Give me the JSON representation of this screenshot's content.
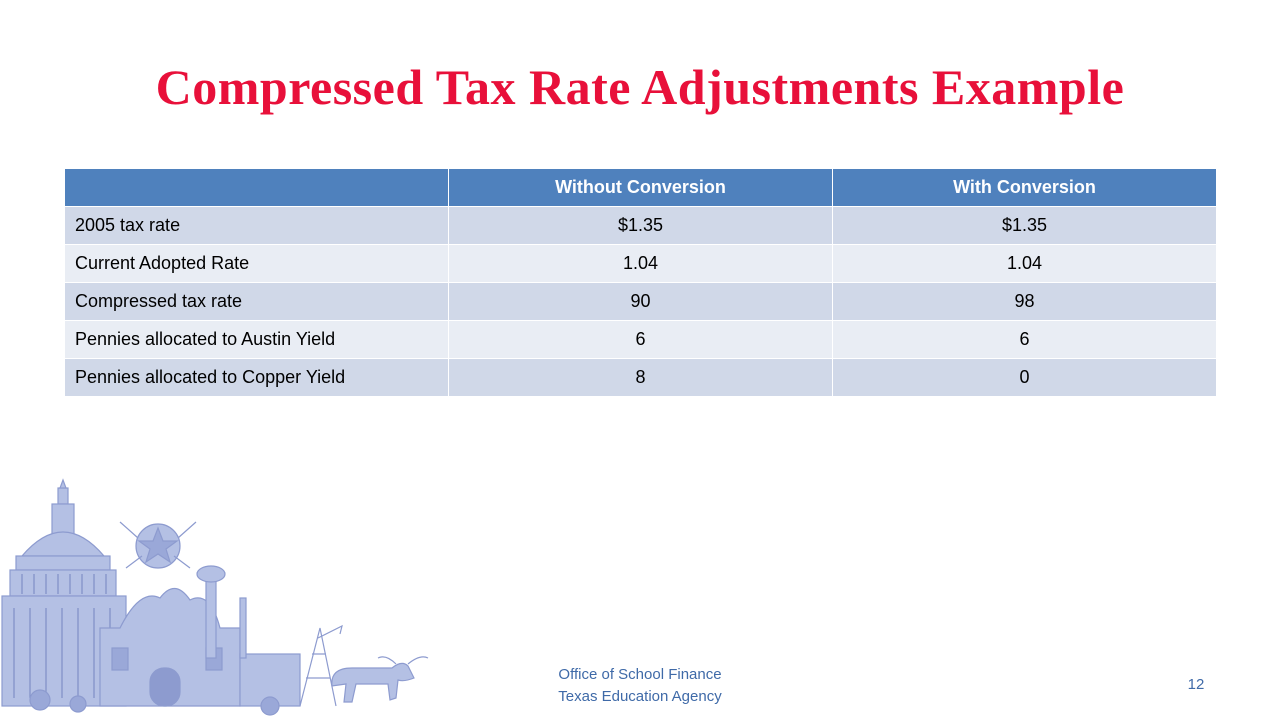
{
  "slide": {
    "title": "Compressed Tax Rate Adjustments Example"
  },
  "table": {
    "headers": [
      "",
      "Without Conversion",
      "With Conversion"
    ],
    "rows": [
      {
        "label": "2005 tax rate",
        "without": "$1.35",
        "with": "$1.35"
      },
      {
        "label": "Current Adopted Rate",
        "without": "1.04",
        "with": "1.04"
      },
      {
        "label": "Compressed tax rate",
        "without": "90",
        "with": "98"
      },
      {
        "label": "Pennies allocated to Austin Yield",
        "without": "6",
        "with": "6"
      },
      {
        "label": "Pennies allocated to Copper Yield",
        "without": "8",
        "with": "0"
      }
    ]
  },
  "footer": {
    "line1": "Office of School Finance",
    "line2": "Texas Education Agency",
    "page_number": "12"
  },
  "colors": {
    "title": "#e8103a",
    "header_fill": "#4f81bd",
    "row_dark": "#d0d8e8",
    "row_light": "#e9edf4",
    "illustration": "#a9b6de",
    "footer_text": "#3f6aa8"
  },
  "illustration": {
    "icon": "texas-landmarks-illustration"
  }
}
